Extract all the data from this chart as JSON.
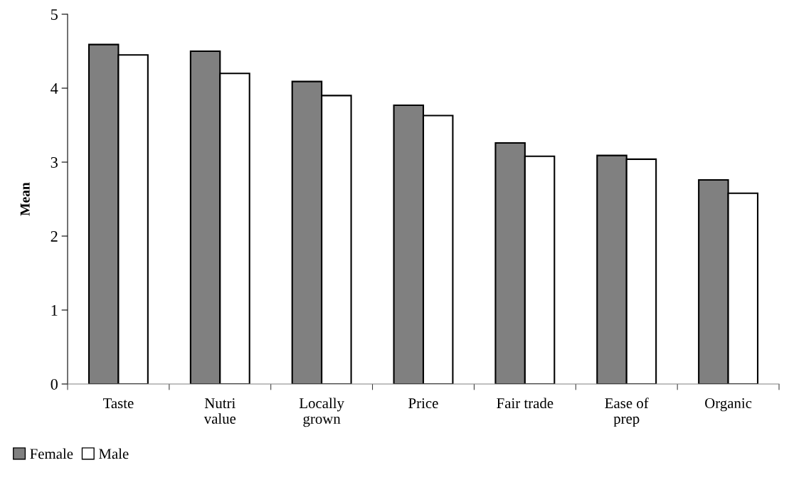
{
  "chart_data": {
    "type": "bar",
    "ylabel": "Mean",
    "categories": [
      "Taste",
      "Nutri\nvalue",
      "Locally\ngrown",
      "Price",
      "Fair trade",
      "Ease of\nprep",
      "Organic"
    ],
    "series": [
      {
        "name": "Female",
        "color": "#808080",
        "values": [
          4.59,
          4.5,
          4.09,
          3.77,
          3.26,
          3.09,
          2.76
        ]
      },
      {
        "name": "Male",
        "color": "#ffffff",
        "values": [
          4.45,
          4.2,
          3.9,
          3.63,
          3.08,
          3.04,
          2.58
        ]
      }
    ],
    "ylim": [
      0,
      5
    ],
    "yticks": [
      0,
      1,
      2,
      3,
      4,
      5
    ],
    "grid": false,
    "legend": "bottom left"
  }
}
